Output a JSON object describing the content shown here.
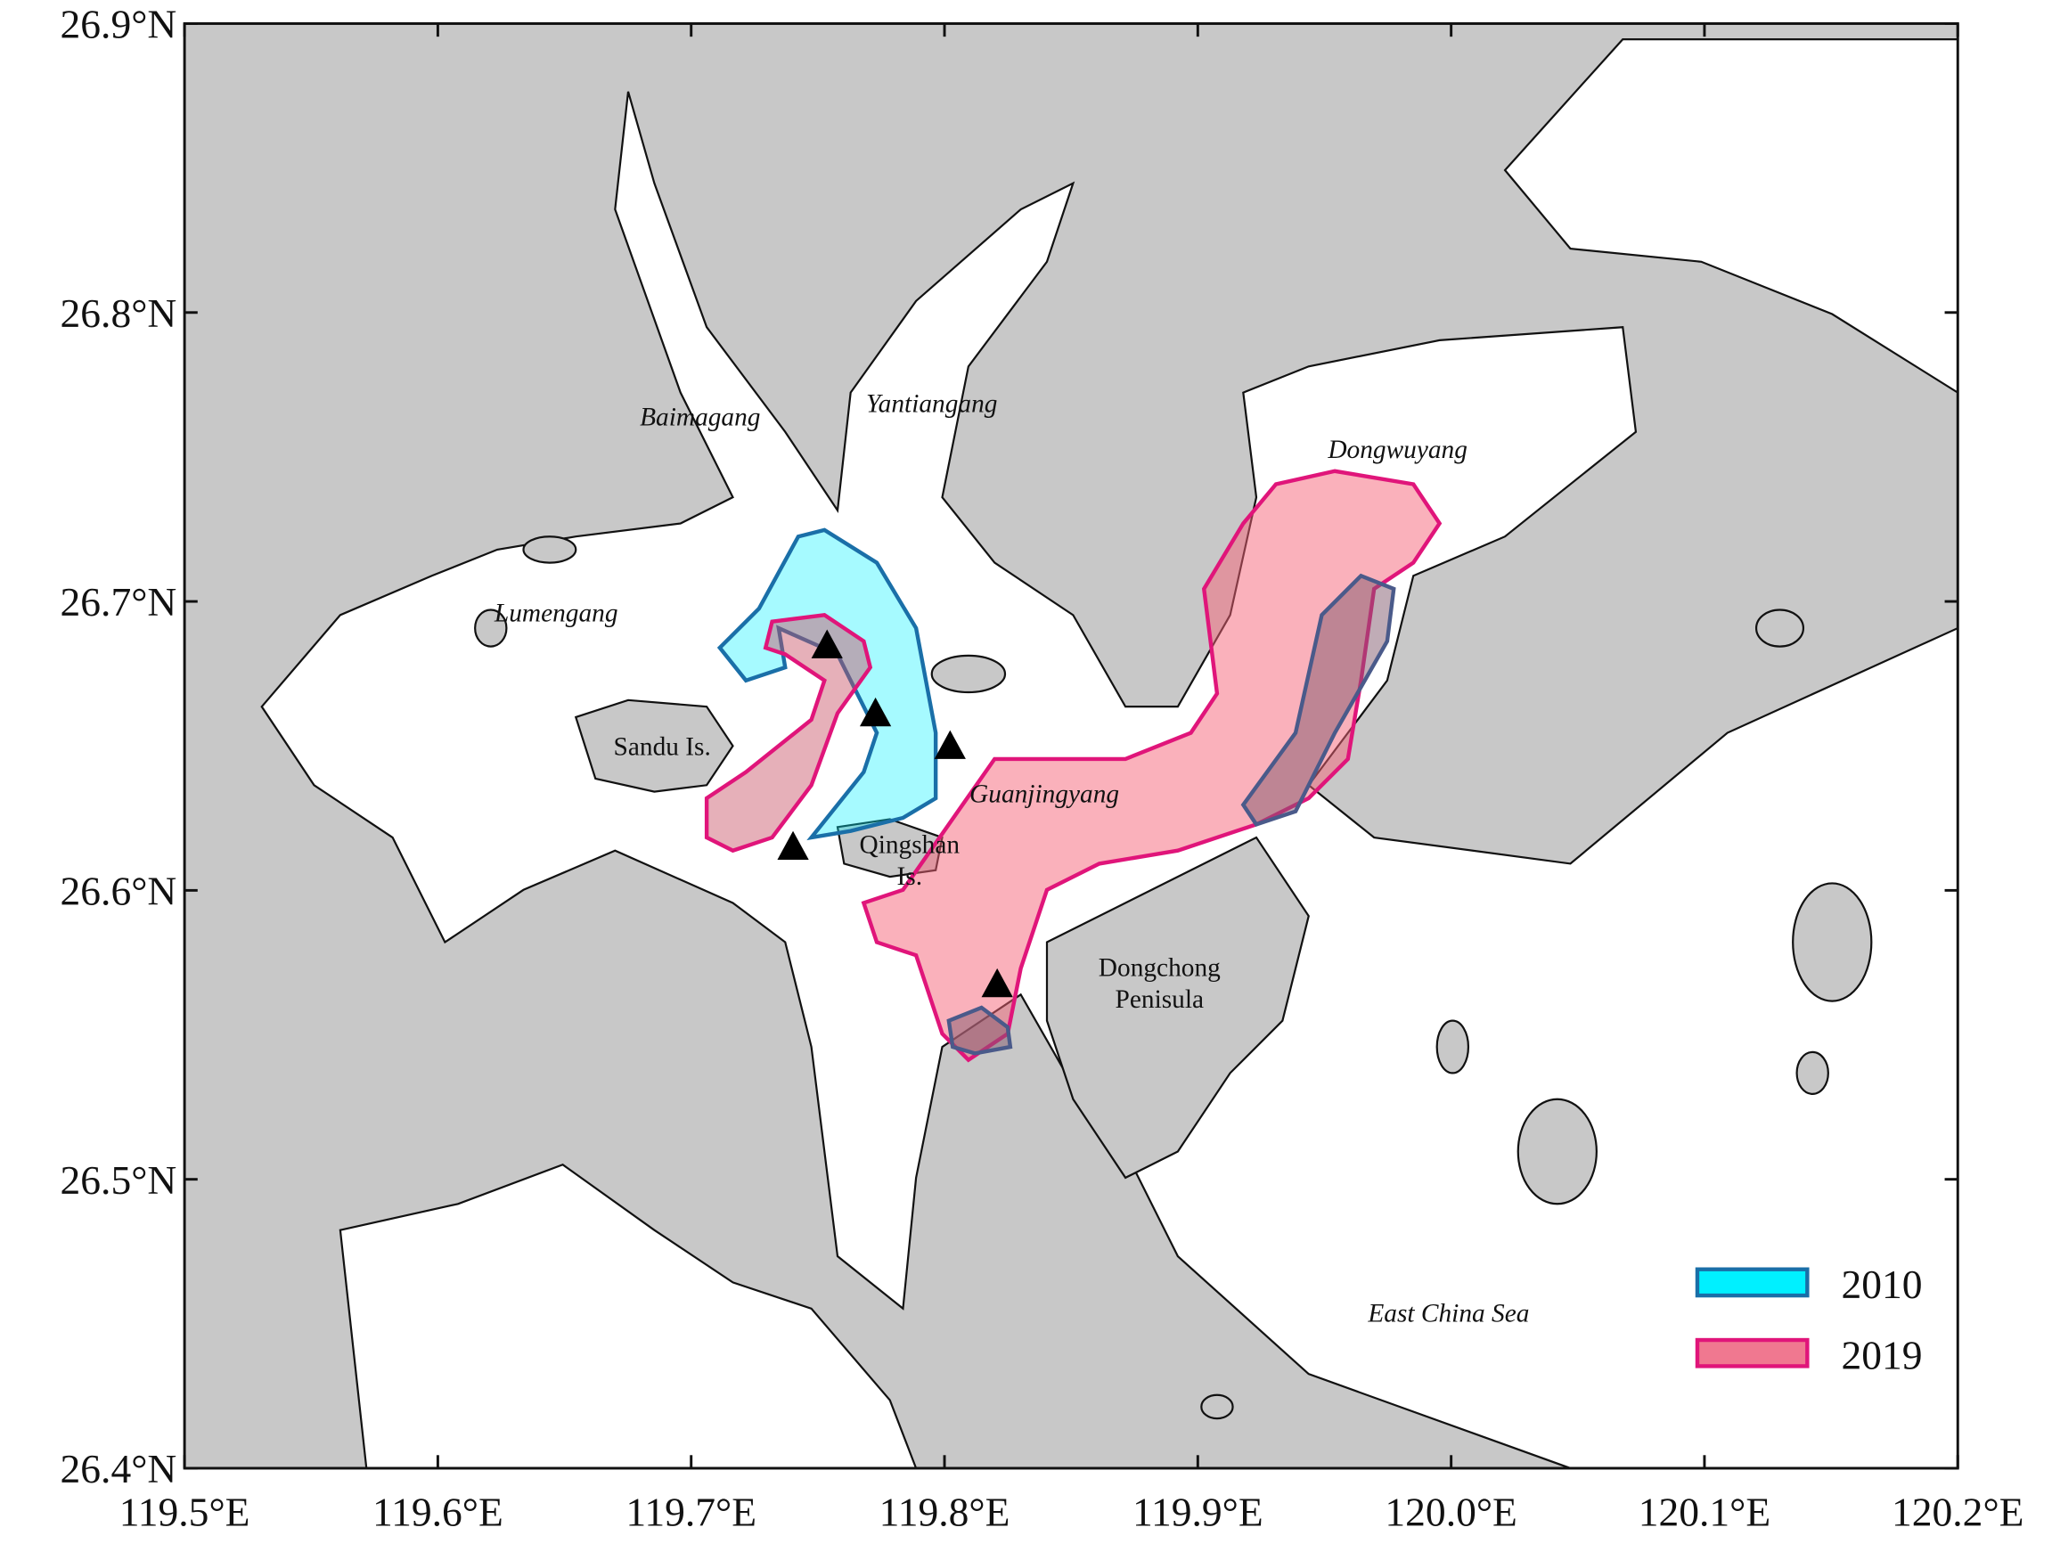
{
  "map": {
    "xlim": [
      119.5,
      120.2
    ],
    "ylim": [
      26.4,
      26.9
    ],
    "xticks": [
      {
        "value": 119.5,
        "label": "119.5°E"
      },
      {
        "value": 119.6,
        "label": "119.6°E"
      },
      {
        "value": 119.7,
        "label": "119.7°E"
      },
      {
        "value": 119.8,
        "label": "119.8°E"
      },
      {
        "value": 119.9,
        "label": "119.9°E"
      },
      {
        "value": 120.0,
        "label": "120.0°E"
      },
      {
        "value": 120.1,
        "label": "120.1°E"
      },
      {
        "value": 120.2,
        "label": "120.2°E"
      }
    ],
    "yticks": [
      {
        "value": 26.4,
        "label": "26.4°N"
      },
      {
        "value": 26.5,
        "label": "26.5°N"
      },
      {
        "value": 26.6,
        "label": "26.6°N"
      },
      {
        "value": 26.7,
        "label": "26.7°N"
      },
      {
        "value": 26.8,
        "label": "26.8°N"
      },
      {
        "value": 26.9,
        "label": "26.9°N"
      }
    ],
    "place_labels": [
      {
        "lines": [
          "Baimagang"
        ]
      },
      {
        "lines": [
          "Yantiangang"
        ]
      },
      {
        "lines": [
          "Dongwuyang"
        ]
      },
      {
        "lines": [
          "Lumengang"
        ]
      },
      {
        "lines": [
          "Sandu Is."
        ]
      },
      {
        "lines": [
          "Guanjingyang"
        ]
      },
      {
        "lines": [
          "Qingshan",
          "Is."
        ]
      },
      {
        "lines": [
          "Dongchong",
          "Penisula"
        ]
      },
      {
        "lines": [
          "East China Sea"
        ]
      }
    ],
    "legend": [
      {
        "label": "2010",
        "color": "#00f0ff"
      },
      {
        "label": "2019",
        "color": "#f07890"
      }
    ]
  }
}
